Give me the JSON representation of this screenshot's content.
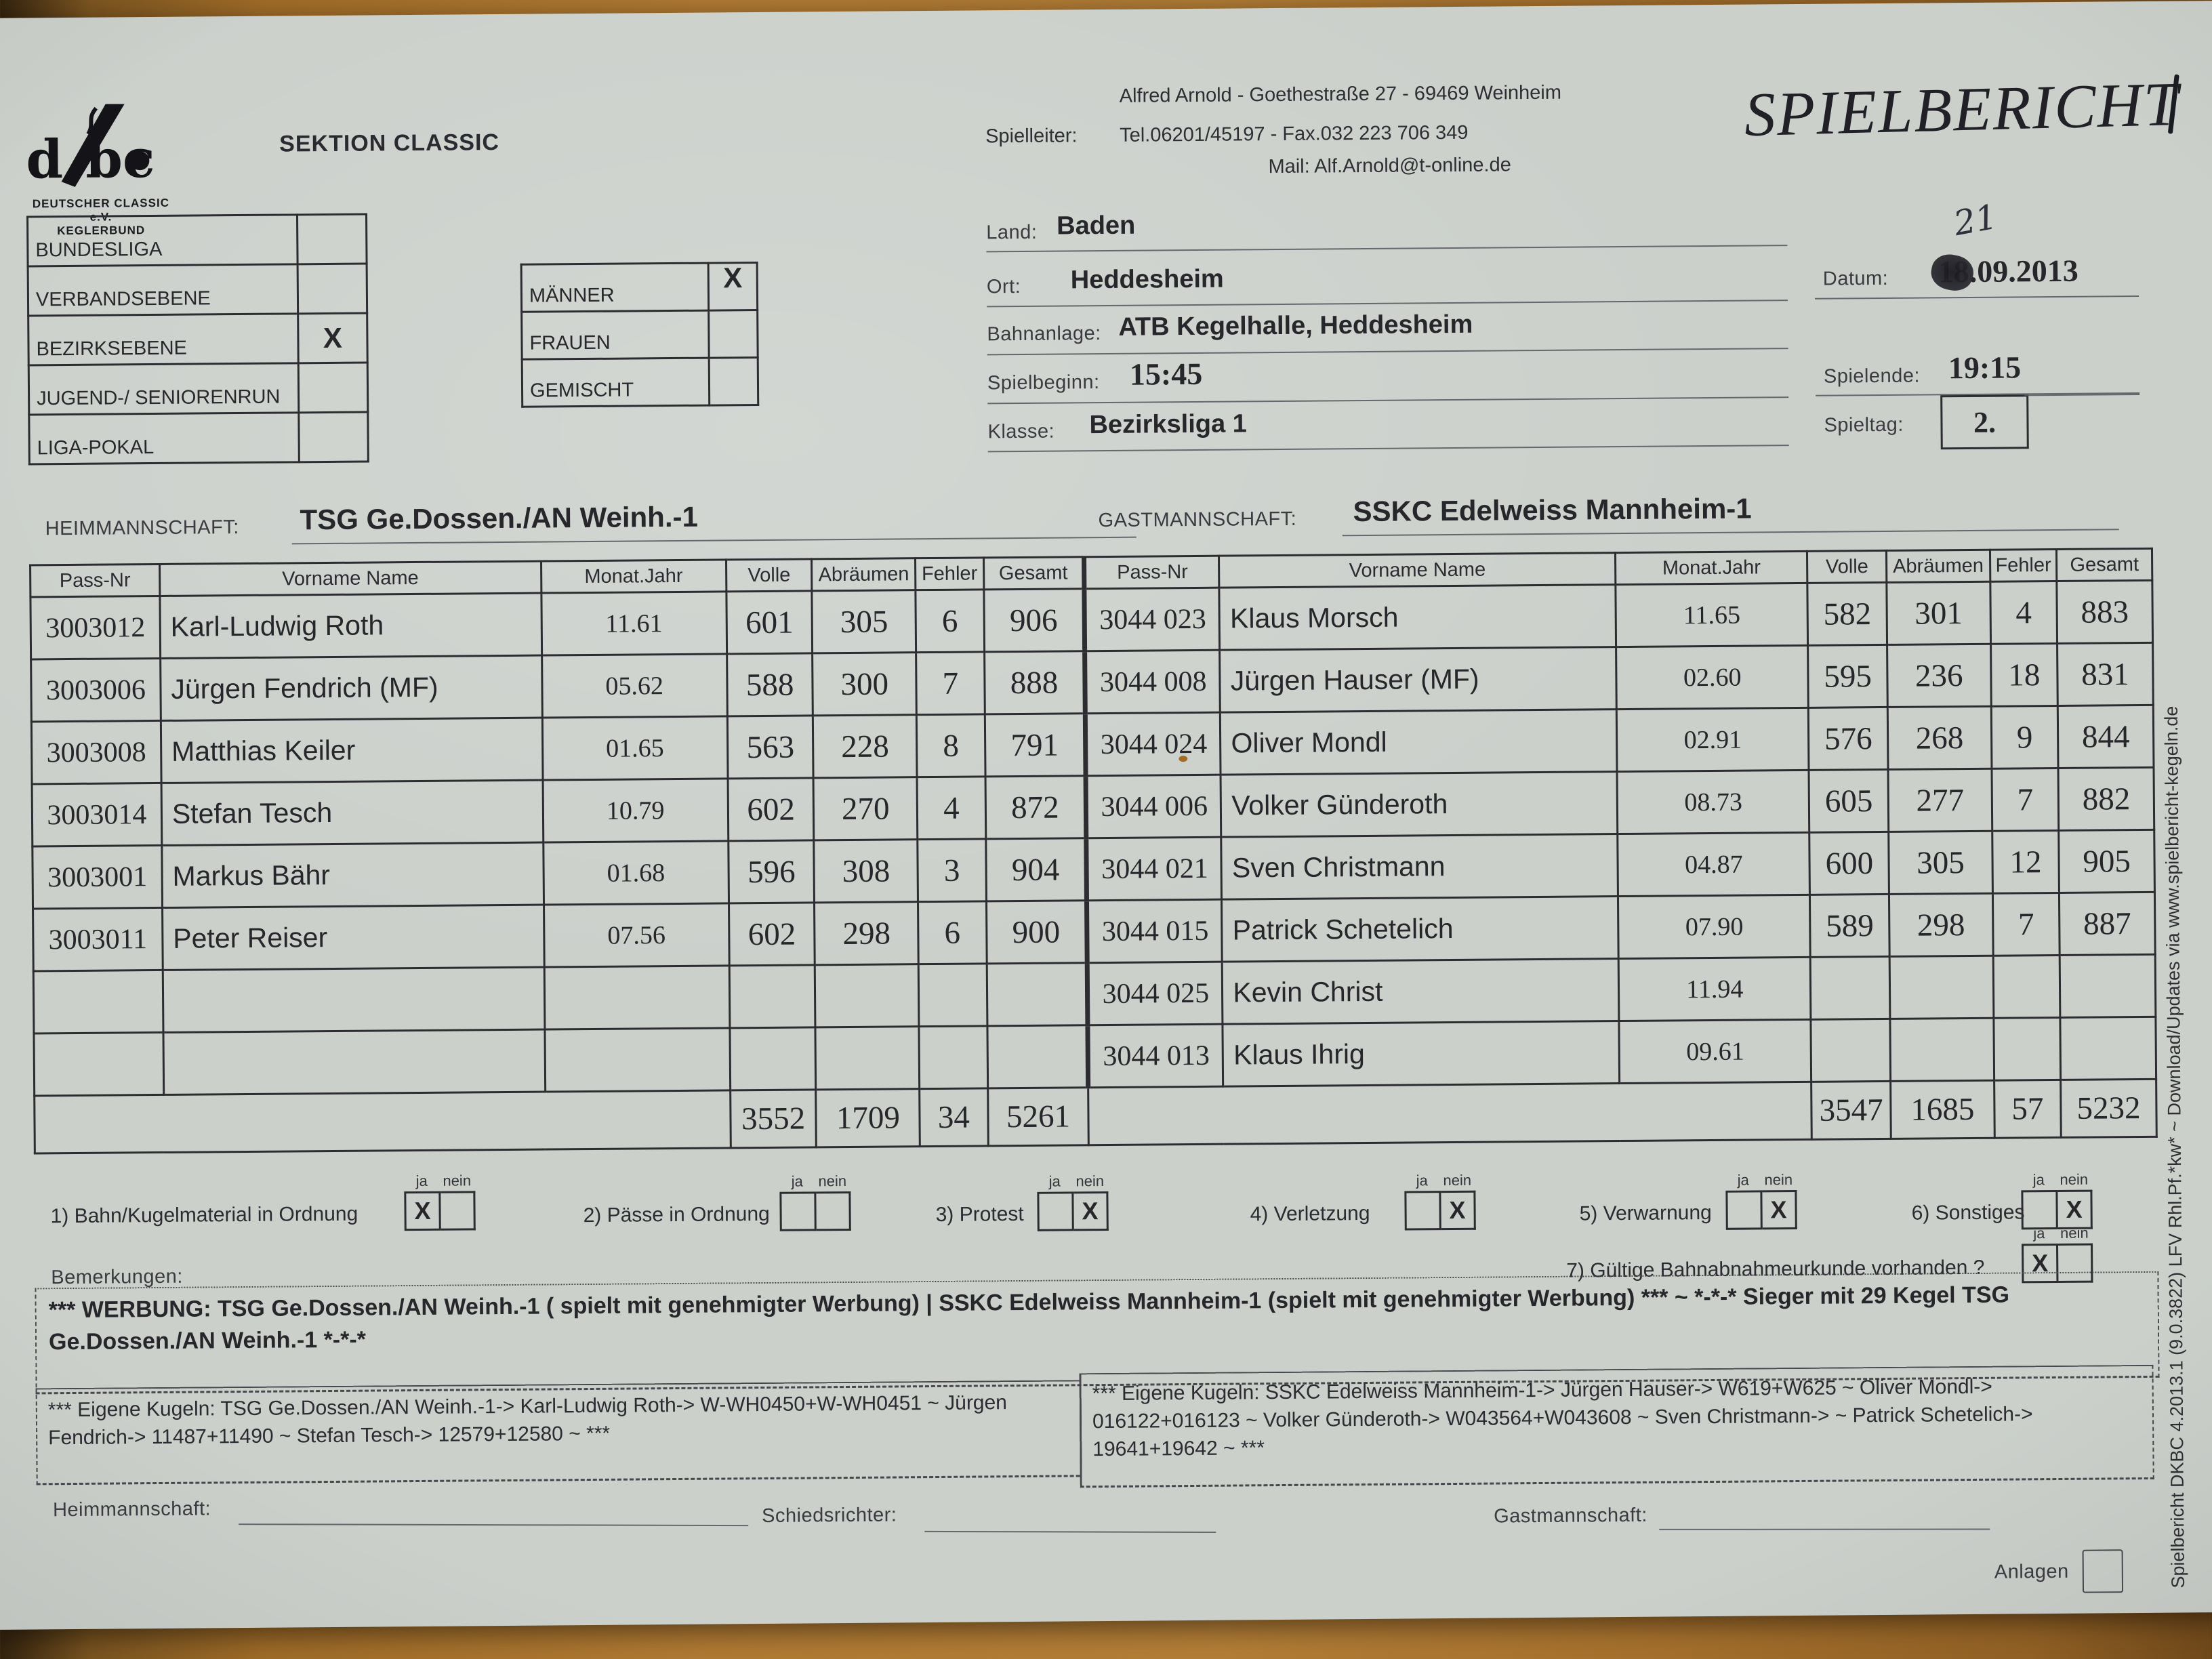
{
  "header": {
    "logo_org_line1": "DEUTSCHER CLASSIC e.V.",
    "logo_org_line2": "KEGLERBUND",
    "section": "SEKTION CLASSIC",
    "contact_name_address": "Alfred Arnold - Goethestraße 27 - 69469 Weinheim",
    "spielleiter_label": "Spielleiter:",
    "contact_tel": "Tel.06201/45197 - Fax.032 223 706 349",
    "contact_mail": "Mail: Alf.Arnold@t-online.de",
    "title": "SPIELBERICHT"
  },
  "league_checkboxes": [
    {
      "label": "BUNDESLIGA",
      "checked": ""
    },
    {
      "label": "VERBANDSEBENE",
      "checked": ""
    },
    {
      "label": "BEZIRKSEBENE",
      "checked": "X"
    },
    {
      "label": "JUGEND-/ SENIORENRUN",
      "checked": ""
    },
    {
      "label": "LIGA-POKAL",
      "checked": ""
    }
  ],
  "gender_checkboxes": [
    {
      "label": "MÄNNER",
      "checked": "X"
    },
    {
      "label": "FRAUEN",
      "checked": ""
    },
    {
      "label": "GEMISCHT",
      "checked": ""
    }
  ],
  "match_info": {
    "land_label": "Land:",
    "land": "Baden",
    "ort_label": "Ort:",
    "ort": "Heddesheim",
    "bahnanlage_label": "Bahnanlage:",
    "bahnanlage": "ATB Kegelhalle, Heddesheim",
    "spielbeginn_label": "Spielbeginn:",
    "spielbeginn": "15:45",
    "klasse_label": "Klasse:",
    "klasse": "Bezirksliga 1",
    "datum_label": "Datum:",
    "datum_day": "18",
    "datum_rest": ".09.2013",
    "datum_handwritten": "21",
    "spielende_label": "Spielende:",
    "spielende": "19:15",
    "spieltag_label": "Spieltag:",
    "spieltag": "2."
  },
  "teams": {
    "home_label": "HEIMMANNSCHAFT:",
    "home": "TSG Ge.Dossen./AN Weinh.-1",
    "guest_label": "GASTMANNSCHAFT:",
    "guest": "SSKC Edelweiss Mannheim-1"
  },
  "table": {
    "headers": [
      "Pass-Nr",
      "Vorname  Name",
      "Monat.Jahr",
      "Volle",
      "Abräumen",
      "Fehler",
      "Gesamt"
    ],
    "home_rows": [
      {
        "pass": "3003012",
        "name": "Karl-Ludwig Roth",
        "monat": "11.61",
        "volle": "601",
        "abr": "305",
        "fehler": "6",
        "gesamt": "906"
      },
      {
        "pass": "3003006",
        "name": "Jürgen Fendrich (MF)",
        "monat": "05.62",
        "volle": "588",
        "abr": "300",
        "fehler": "7",
        "gesamt": "888"
      },
      {
        "pass": "3003008",
        "name": "Matthias Keiler",
        "monat": "01.65",
        "volle": "563",
        "abr": "228",
        "fehler": "8",
        "gesamt": "791"
      },
      {
        "pass": "3003014",
        "name": "Stefan Tesch",
        "monat": "10.79",
        "volle": "602",
        "abr": "270",
        "fehler": "4",
        "gesamt": "872"
      },
      {
        "pass": "3003001",
        "name": "Markus Bähr",
        "monat": "01.68",
        "volle": "596",
        "abr": "308",
        "fehler": "3",
        "gesamt": "904"
      },
      {
        "pass": "3003011",
        "name": "Peter Reiser",
        "monat": "07.56",
        "volle": "602",
        "abr": "298",
        "fehler": "6",
        "gesamt": "900"
      },
      {
        "pass": "",
        "name": "",
        "monat": "",
        "volle": "",
        "abr": "",
        "fehler": "",
        "gesamt": ""
      },
      {
        "pass": "",
        "name": "",
        "monat": "",
        "volle": "",
        "abr": "",
        "fehler": "",
        "gesamt": ""
      }
    ],
    "guest_rows": [
      {
        "pass": "3044 023",
        "name": "Klaus Morsch",
        "monat": "11.65",
        "volle": "582",
        "abr": "301",
        "fehler": "4",
        "gesamt": "883"
      },
      {
        "pass": "3044 008",
        "name": "Jürgen Hauser (MF)",
        "monat": "02.60",
        "volle": "595",
        "abr": "236",
        "fehler": "18",
        "gesamt": "831"
      },
      {
        "pass": "3044 024",
        "name": "Oliver Mondl",
        "monat": "02.91",
        "volle": "576",
        "abr": "268",
        "fehler": "9",
        "gesamt": "844"
      },
      {
        "pass": "3044 006",
        "name": "Volker Günderoth",
        "monat": "08.73",
        "volle": "605",
        "abr": "277",
        "fehler": "7",
        "gesamt": "882"
      },
      {
        "pass": "3044 021",
        "name": "Sven Christmann",
        "monat": "04.87",
        "volle": "600",
        "abr": "305",
        "fehler": "12",
        "gesamt": "905"
      },
      {
        "pass": "3044 015",
        "name": "Patrick Schetelich",
        "monat": "07.90",
        "volle": "589",
        "abr": "298",
        "fehler": "7",
        "gesamt": "887"
      },
      {
        "pass": "3044 025",
        "name": "Kevin Christ",
        "monat": "11.94",
        "volle": "",
        "abr": "",
        "fehler": "",
        "gesamt": ""
      },
      {
        "pass": "3044 013",
        "name": "Klaus Ihrig",
        "monat": "09.61",
        "volle": "",
        "abr": "",
        "fehler": "",
        "gesamt": ""
      }
    ],
    "home_totals": {
      "volle": "3552",
      "abr": "1709",
      "fehler": "34",
      "gesamt": "5261"
    },
    "guest_totals": {
      "volle": "3547",
      "abr": "1685",
      "fehler": "57",
      "gesamt": "5232"
    }
  },
  "ja_nein": {
    "ja": "ja",
    "nein": "nein"
  },
  "questions": [
    {
      "no": "1)",
      "label": "Bahn/Kugelmaterial in Ordnung",
      "ja": "X",
      "nein": ""
    },
    {
      "no": "2)",
      "label": "Pässe in Ordnung",
      "ja": "",
      "nein": ""
    },
    {
      "no": "3)",
      "label": "Protest",
      "ja": "",
      "nein": "X"
    },
    {
      "no": "4)",
      "label": "Verletzung",
      "ja": "",
      "nein": "X"
    },
    {
      "no": "5)",
      "label": "Verwarnung",
      "ja": "",
      "nein": "X"
    },
    {
      "no": "6)",
      "label": "Sonstiges",
      "ja": "",
      "nein": "X"
    },
    {
      "no": "7)",
      "label": "Gültige Bahnabnahmeurkunde vorhanden ?",
      "ja": "X",
      "nein": ""
    }
  ],
  "bemerkungen": {
    "label": "Bemerkungen:",
    "text": "*** WERBUNG: TSG Ge.Dossen./AN Weinh.-1 ( spielt mit genehmigter Werbung) | SSKC Edelweiss Mannheim-1 (spielt mit genehmigter Werbung) *** ~ *-*-* Sieger mit 29 Kegel TSG Ge.Dossen./AN Weinh.-1 *-*-*"
  },
  "eigene_kugeln_home": "*** Eigene Kugeln: TSG Ge.Dossen./AN Weinh.-1-> Karl-Ludwig Roth-> W-WH0450+W-WH0451 ~ Jürgen Fendrich-> 11487+11490 ~ Stefan Tesch-> 12579+12580 ~  ***",
  "eigene_kugeln_guest": "*** Eigene Kugeln: SSKC Edelweiss Mannheim-1-> Jürgen Hauser-> W619+W625 ~ Oliver Mondl-> 016122+016123 ~ Volker Günderoth-> W043564+W043608 ~ Sven Christmann->  ~ Patrick Schetelich-> 19641+19642 ~  ***",
  "footer": {
    "home_sig_label": "Heimmannschaft:",
    "referee_label": "Schiedsrichter:",
    "guest_sig_label": "Gastmannschaft:",
    "anlagen_label": "Anlagen"
  },
  "sidebar_text": "Spielbericht DKBC 4.2013.1 (9.0.3822) LFV Rhl.Pf.*kw* ~ Download/Updates via www.spielbericht-kegeln.de"
}
